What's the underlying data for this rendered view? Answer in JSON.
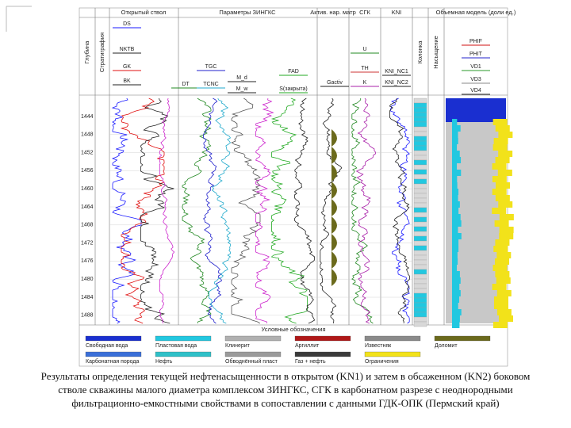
{
  "figure": {
    "column_headers": [
      "Глубина",
      "Стратиграфия",
      "Открытый ствол",
      "Параметры ЗИНГКС",
      "Актив. нар. матр",
      "СГК",
      "KNI",
      "Колонка",
      "Насыщение",
      "Объемная модель (доли ед.)"
    ],
    "curve_labels": [
      "DS",
      "NKTB",
      "GK",
      "BK",
      "DT",
      "TGC",
      "TCNC",
      "FAD",
      "M_d",
      "M_w",
      "S(закрыта)",
      "Gactiv",
      "U",
      "TH",
      "K",
      "KNI_NC1",
      "KNI_NC2",
      "PHIF",
      "PHIT",
      "VD1",
      "VD3",
      "VD4"
    ],
    "depths": [
      "1444",
      "1448",
      "1452",
      "1456",
      "1460",
      "1464",
      "1468",
      "1472",
      "1476",
      "1480",
      "1484",
      "1488"
    ],
    "legend_title": "Условные обозначения",
    "legend_items": [
      {
        "label": "Свободная вода",
        "color": "#1a2fd0"
      },
      {
        "label": "Пластовая вода",
        "color": "#22c8e0"
      },
      {
        "label": "Клинерит",
        "color": "#b0b0b0"
      },
      {
        "label": "Аргиллит",
        "color": "#b01818"
      },
      {
        "label": "Известняк",
        "color": "#8a8a8a"
      },
      {
        "label": "Доломит",
        "color": "#6b6a1c"
      },
      {
        "label": "Карбонатная порода",
        "color": "#3a6fd8"
      },
      {
        "label": "Нефть",
        "color": "#2fc0c8"
      },
      {
        "label": "Обводнённый пласт",
        "color": "#9a9a9a"
      },
      {
        "label": "Газ + нефть",
        "color": "#3a3a3a"
      },
      {
        "label": "Ограничения",
        "color": "#f2e21a"
      }
    ]
  },
  "caption": "Результаты определения текущей нефтенасыщенности в открытом (KN1) и затем в обсаженном (KN2) боковом стволе скважины малого диаметра комплексом ЗИНГКС, СГК в карбонатном разрезе с неоднородными фильтрационно-емкостными свойствами в сопоставлении с данными ГДК-ОПК (Пермский край)"
}
